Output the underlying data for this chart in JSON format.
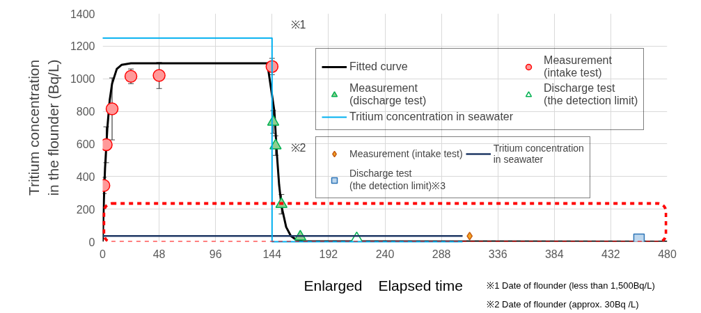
{
  "chart_data": {
    "type": "scatter",
    "xlabel": "Elapsed time",
    "ylabel": "Tritium concentration\nin the flounder (Bq/L)",
    "xlim": [
      0,
      480
    ],
    "xticks": [
      0,
      48,
      96,
      144,
      192,
      240,
      288,
      336,
      384,
      432,
      480
    ],
    "ylim": [
      0,
      1400
    ],
    "yticks": [
      0,
      200,
      400,
      600,
      800,
      1000,
      1200,
      1400
    ],
    "grid": true,
    "legend": "top right",
    "series": [
      {
        "name": "Fitted curve",
        "type": "line",
        "color": "#000000",
        "x": [
          0,
          1,
          2,
          4,
          6,
          8,
          12,
          16,
          24,
          140,
          146,
          148,
          150,
          152,
          156,
          160,
          165,
          170,
          480
        ],
        "values": [
          0,
          250,
          450,
          700,
          870,
          970,
          1060,
          1085,
          1095,
          1095,
          800,
          550,
          350,
          220,
          90,
          35,
          10,
          2,
          0
        ]
      },
      {
        "name": "Measurement\n(intake test)",
        "marker": "circle",
        "color": "#ff9999",
        "x": [
          1,
          3,
          8,
          24,
          48,
          144
        ],
        "values": [
          345,
          595,
          815,
          1015,
          1020,
          1075
        ],
        "errors": [
          50,
          110,
          190,
          45,
          80,
          50
        ]
      },
      {
        "name": "Measurement\n(discharge test)",
        "marker": "triangle",
        "color": "#8fce8f",
        "x": [
          145,
          147,
          152,
          168
        ],
        "values": [
          735,
          590,
          230,
          30
        ],
        "errors": [
          70,
          60,
          60,
          null
        ]
      },
      {
        "name": "Discharge test\n(the detection limit)",
        "marker": "triangle",
        "color": "#ffffff",
        "x": [
          216
        ],
        "values": [
          20
        ]
      },
      {
        "name": "Tritium concentration in seawater",
        "type": "step",
        "color": "#00b0f0",
        "x": [
          0,
          144,
          306
        ],
        "values": [
          1250,
          0,
          0
        ]
      },
      {
        "name": "Measurement (intake test)",
        "marker": "diamond",
        "color": "#f5a623",
        "x": [
          312
        ],
        "values": [
          35
        ]
      },
      {
        "name": "Discharge test\n(the detection limit)※3",
        "marker": "square",
        "color": "#bdd7ee",
        "x": [
          456
        ],
        "values": [
          15
        ]
      },
      {
        "name": "Tritium concentration\nin seawater",
        "type": "line",
        "color": "#1f3864",
        "x": [
          0,
          306
        ],
        "values": [
          35,
          35
        ]
      }
    ],
    "annotations": [
      "※1",
      "※2",
      "Enlarged",
      "※1 Date of flounder (less than 1,500Bq/L)",
      "※2 Date of flounder (approx. 30Bq /L)"
    ]
  }
}
